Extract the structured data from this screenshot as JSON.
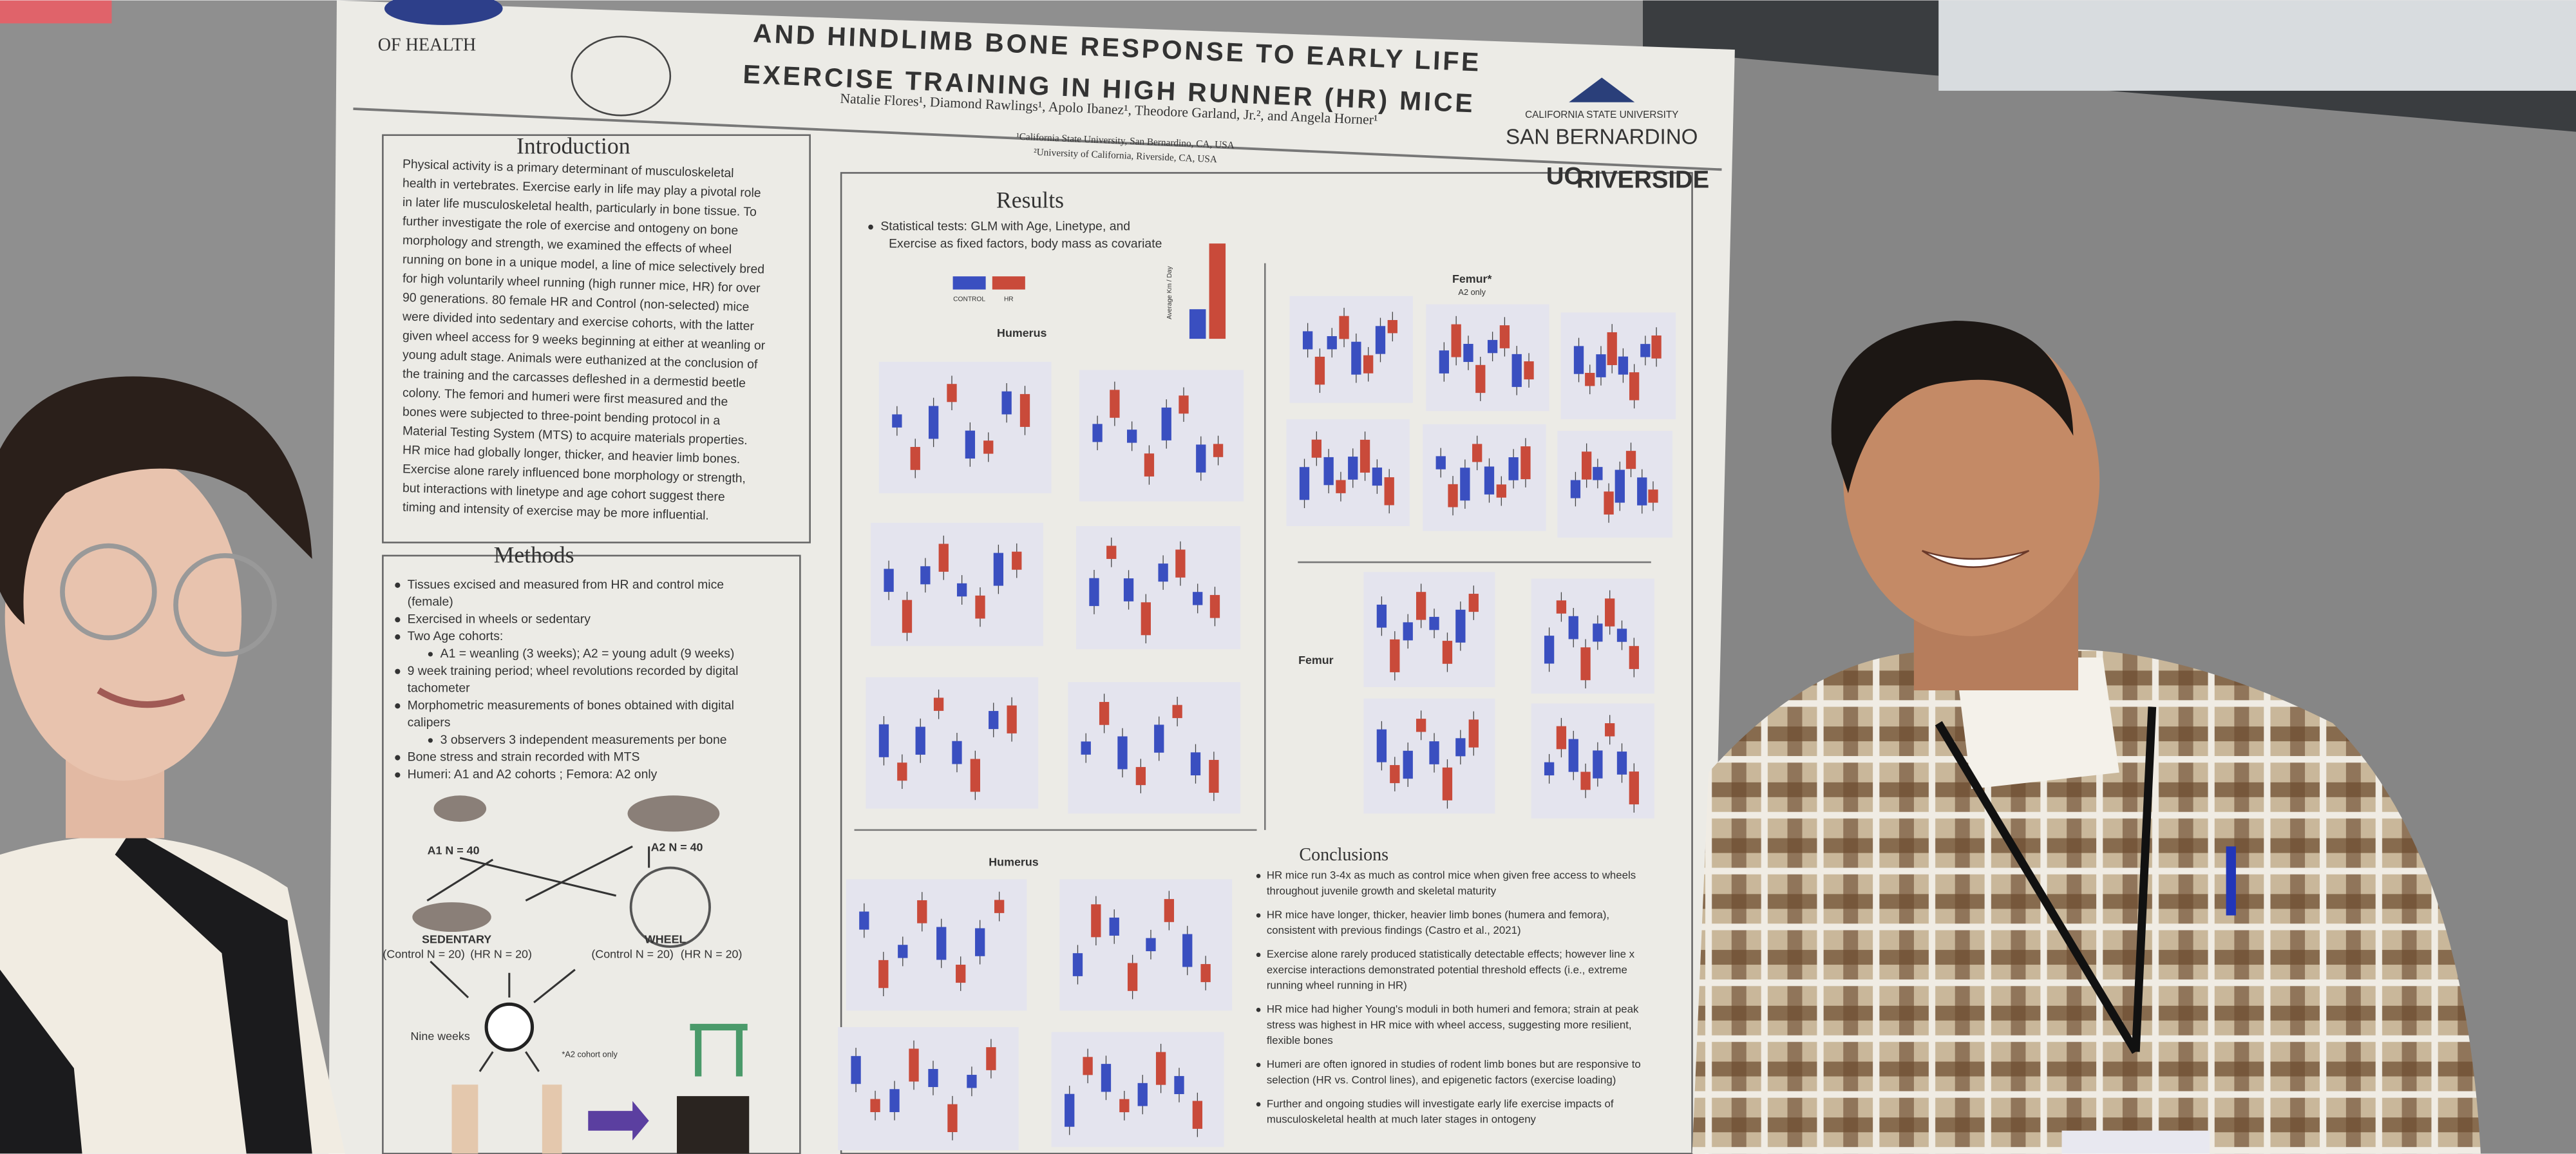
{
  "poster": {
    "title": [
      "AND HINDLIMB BONE RESPONSE TO EARLY LIFE",
      "EXERCISE TRAINING IN HIGH RUNNER (HR) MICE"
    ],
    "authors": "Natalie Flores¹, Diamond Rawlings¹, Apolo Ibanez¹, Theodore Garland, Jr.², and Angela Horner¹",
    "affiliations": [
      "¹California State University, San Bernardino, CA, USA",
      "²University of California, Riverside, CA, USA"
    ],
    "logos": {
      "left": "OF HEALTH",
      "csusb_top": "CALIFORNIA STATE UNIVERSITY",
      "csusb": "SAN BERNARDINO",
      "ucr_uc": "UC",
      "ucr": "RIVERSIDE"
    },
    "introduction": {
      "heading": "Introduction",
      "lines": [
        "Physical activity is a primary determinant of musculoskeletal",
        "health in vertebrates. Exercise early in life may play a pivotal role",
        "in later life musculoskeletal health, particularly in bone tissue. To",
        "further investigate the role of exercise and ontogeny on bone",
        "morphology and strength, we examined the effects of wheel",
        "running on bone in a unique model, a line of mice selectively bred",
        "for high voluntarily wheel running (high runner mice, HR) for over",
        "90 generations. 80 female HR and Control (non-selected) mice",
        "were divided into sedentary and exercise cohorts, with the latter",
        "given wheel access for 9 weeks beginning at either at weanling or",
        "young adult stage. Animals were euthanized at the conclusion of",
        "the training and the carcasses defleshed in a dermestid beetle",
        "colony. The femori and humeri were first measured and the",
        "bones were subjected to three-point bending protocol in a",
        "Material Testing System (MTS) to acquire materials properties.",
        "HR mice had globally longer, thicker, and heavier limb bones.",
        "Exercise alone rarely influenced bone morphology or strength,",
        "but interactions with linetype and age cohort suggest there",
        "timing and intensity of exercise may be more influential."
      ]
    },
    "methods": {
      "heading": "Methods",
      "bullets": [
        {
          "lines": [
            "Tissues excised and measured from HR and control mice",
            "(female)"
          ],
          "sub": []
        },
        {
          "lines": [
            "Exercised in wheels or sedentary"
          ],
          "sub": []
        },
        {
          "lines": [
            "Two Age cohorts:"
          ],
          "sub": [
            [
              "A1 = weanling (3 weeks); A2 = young adult (9 weeks)"
            ]
          ]
        },
        {
          "lines": [
            "9 week training period; wheel revolutions recorded by digital",
            "tachometer"
          ],
          "sub": []
        },
        {
          "lines": [
            "Morphometric measurements of bones obtained with digital",
            "calipers"
          ],
          "sub": [
            [
              "3 observers 3 independent measurements per bone"
            ]
          ]
        },
        {
          "lines": [
            "Bone stress and strain recorded with MTS"
          ],
          "sub": []
        },
        {
          "lines": [
            "Humeri: A1 and A2 cohorts ; Femora: A2 only"
          ],
          "sub": []
        }
      ],
      "diagram": {
        "a1": "A1 N = 40",
        "a2": "A2 N = 40",
        "sedentary": "SEDENTARY",
        "control_sed": "(Control N = 20)",
        "hr_sed": "(HR N = 20)",
        "wheel": "WHEEL",
        "control_wheel": "(Control N = 20)",
        "hr_wheel": "(HR N = 20)",
        "nine_weeks": "Nine weeks",
        "note": "*A2 cohort only"
      }
    },
    "results": {
      "heading": "Results",
      "stats": [
        "Statistical tests: GLM with Age, Linetype, and",
        "Exercise as fixed factors, body mass as covariate"
      ],
      "legend": [
        "CONTROL",
        "HR"
      ],
      "legend_axis": "Average Km / Day",
      "humerus": "Humerus",
      "femur_star": "Femur*",
      "a2_only": "A2 only",
      "femur": "Femur",
      "humerus_lower": "Humerus"
    },
    "conclusions": {
      "heading": "Conclusions",
      "bullets": [
        [
          "HR mice run 3-4x as much as control mice when given free access to wheels",
          "throughout juvenile growth and skeletal maturity"
        ],
        [
          "HR mice have longer, thicker, heavier limb bones (humera and femora),",
          "consistent with previous findings (Castro et al., 2021)"
        ],
        [
          "Exercise alone rarely produced statistically detectable effects; however line x",
          "exercise interactions demonstrated potential threshold effects (i.e., extreme",
          "running wheel running in HR)"
        ],
        [
          "HR mice had higher Young's moduli in both humeri and femora; strain at peak",
          "stress was highest in HR mice with wheel access, suggesting more resilient,",
          "flexible bones"
        ],
        [
          "Humeri are often ignored in studies of rodent limb bones but are responsive to",
          "selection (HR vs. Control lines), and epigenetic factors (exercise loading)"
        ],
        [
          "Further and ongoing studies will investigate early life exercise impacts of",
          "musculoskeletal health at much later stages in ontogeny"
        ]
      ]
    }
  }
}
